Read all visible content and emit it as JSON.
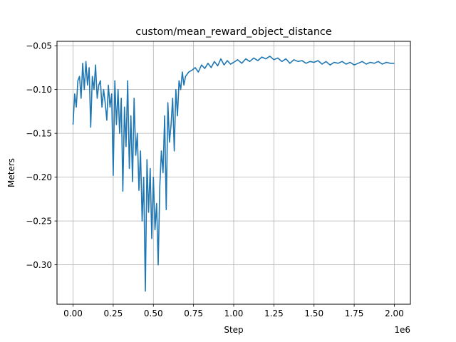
{
  "chart_data": {
    "type": "line",
    "title": "custom/mean_reward_object_distance",
    "xlabel": "Step",
    "ylabel": "Meters",
    "x_offset_label": "1e6",
    "xlim": [
      -100000,
      2100000
    ],
    "ylim": [
      -0.345,
      -0.045
    ],
    "grid": true,
    "legend": "none",
    "color": "#1f77b4",
    "x_ticks": [
      0,
      250000,
      500000,
      750000,
      1000000,
      1250000,
      1500000,
      1750000,
      2000000
    ],
    "x_tick_labels": [
      "0.00",
      "0.25",
      "0.50",
      "0.75",
      "1.00",
      "1.25",
      "1.50",
      "1.75",
      "2.00"
    ],
    "y_ticks": [
      -0.3,
      -0.25,
      -0.2,
      -0.15,
      -0.1,
      -0.05
    ],
    "y_tick_labels": [
      "−0.30",
      "−0.25",
      "−0.20",
      "−0.15",
      "−0.10",
      "−0.05"
    ],
    "series": [
      {
        "x": [
          0,
          10000,
          20000,
          30000,
          40000,
          50000,
          60000,
          70000,
          80000,
          90000,
          100000,
          110000,
          120000,
          130000,
          140000,
          150000,
          160000,
          170000,
          180000,
          190000,
          200000,
          210000,
          220000,
          230000,
          240000,
          250000,
          260000,
          270000,
          280000,
          290000,
          300000,
          310000,
          320000,
          330000,
          340000,
          350000,
          360000,
          370000,
          380000,
          390000,
          400000,
          410000,
          420000,
          430000,
          440000,
          450000,
          460000,
          470000,
          480000,
          490000,
          500000,
          510000,
          520000,
          530000,
          540000,
          550000,
          560000,
          570000,
          580000,
          590000,
          600000,
          610000,
          620000,
          630000,
          640000,
          650000,
          660000,
          670000,
          680000,
          690000,
          700000,
          720000,
          740000,
          760000,
          780000,
          800000,
          820000,
          840000,
          860000,
          880000,
          900000,
          920000,
          940000,
          960000,
          980000,
          1000000,
          1025000,
          1050000,
          1075000,
          1100000,
          1125000,
          1150000,
          1175000,
          1200000,
          1225000,
          1250000,
          1275000,
          1300000,
          1325000,
          1350000,
          1375000,
          1400000,
          1425000,
          1450000,
          1475000,
          1500000,
          1525000,
          1550000,
          1575000,
          1600000,
          1625000,
          1650000,
          1675000,
          1700000,
          1725000,
          1750000,
          1775000,
          1800000,
          1825000,
          1850000,
          1875000,
          1900000,
          1925000,
          1950000,
          1975000,
          2000000
        ],
        "y": [
          -0.14,
          -0.105,
          -0.12,
          -0.09,
          -0.085,
          -0.11,
          -0.07,
          -0.1,
          -0.068,
          -0.095,
          -0.075,
          -0.143,
          -0.085,
          -0.1,
          -0.072,
          -0.11,
          -0.095,
          -0.09,
          -0.12,
          -0.1,
          -0.115,
          -0.135,
          -0.095,
          -0.12,
          -0.105,
          -0.198,
          -0.09,
          -0.14,
          -0.1,
          -0.15,
          -0.11,
          -0.216,
          -0.12,
          -0.165,
          -0.09,
          -0.19,
          -0.13,
          -0.205,
          -0.11,
          -0.175,
          -0.15,
          -0.215,
          -0.17,
          -0.25,
          -0.2,
          -0.33,
          -0.18,
          -0.24,
          -0.19,
          -0.27,
          -0.2,
          -0.26,
          -0.23,
          -0.3,
          -0.21,
          -0.17,
          -0.195,
          -0.13,
          -0.237,
          -0.115,
          -0.16,
          -0.14,
          -0.11,
          -0.17,
          -0.1,
          -0.13,
          -0.09,
          -0.1,
          -0.08,
          -0.095,
          -0.085,
          -0.08,
          -0.078,
          -0.075,
          -0.08,
          -0.072,
          -0.076,
          -0.07,
          -0.075,
          -0.068,
          -0.073,
          -0.065,
          -0.072,
          -0.067,
          -0.071,
          -0.069,
          -0.066,
          -0.07,
          -0.065,
          -0.068,
          -0.064,
          -0.067,
          -0.063,
          -0.065,
          -0.062,
          -0.066,
          -0.064,
          -0.068,
          -0.065,
          -0.07,
          -0.066,
          -0.068,
          -0.067,
          -0.07,
          -0.068,
          -0.069,
          -0.067,
          -0.071,
          -0.068,
          -0.072,
          -0.069,
          -0.07,
          -0.068,
          -0.071,
          -0.069,
          -0.072,
          -0.07,
          -0.068,
          -0.071,
          -0.069,
          -0.07,
          -0.068,
          -0.071,
          -0.069,
          -0.07,
          -0.07
        ]
      }
    ]
  }
}
